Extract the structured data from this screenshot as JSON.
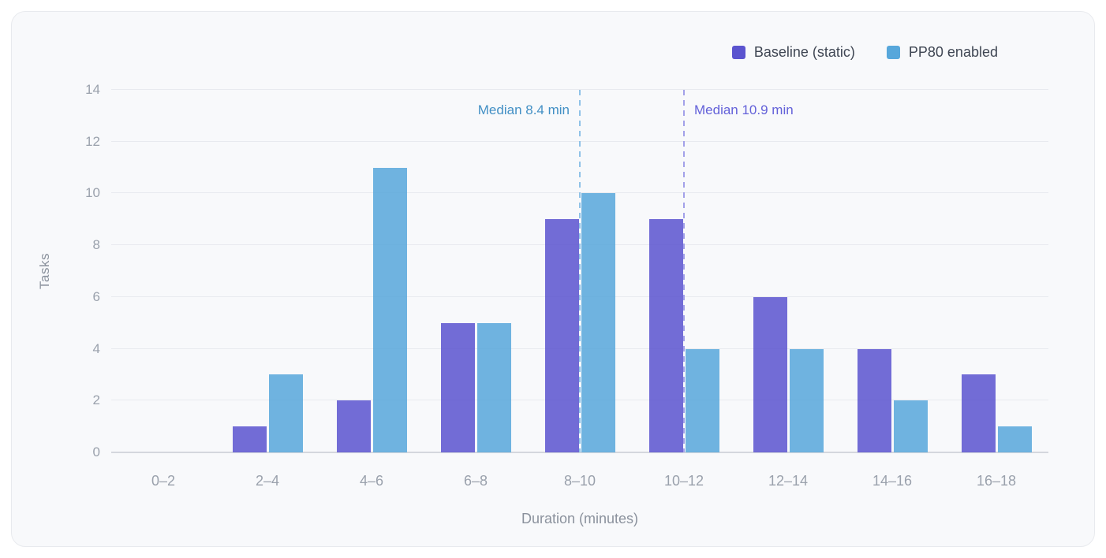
{
  "chart_data": {
    "type": "bar",
    "categories": [
      "0–2",
      "2–4",
      "4–6",
      "6–8",
      "8–10",
      "10–12",
      "12–14",
      "14–16",
      "16–18"
    ],
    "series": [
      {
        "name": "Baseline (static)",
        "color": "#5b54cf",
        "values": [
          0,
          1,
          2,
          5,
          9,
          9,
          6,
          4,
          3
        ]
      },
      {
        "name": "PP80 enabled",
        "color": "#57a7db",
        "values": [
          0,
          3,
          11,
          5,
          10,
          4,
          4,
          2,
          1
        ]
      }
    ],
    "xlabel": "Duration (minutes)",
    "ylabel": "Tasks",
    "ylim": [
      0,
      14
    ],
    "yticks": [
      0,
      2,
      4,
      6,
      8,
      10,
      12,
      14
    ],
    "x_range_minutes": [
      0,
      18
    ],
    "bin_width_minutes": 2,
    "grid": "horizontal",
    "legend_position": "top-right",
    "annotations": [
      {
        "type": "vline",
        "value": 8.4,
        "label": "Median 8.4 min",
        "line_color": "#8fc2e8",
        "text_color": "#4390c5",
        "label_side": "left"
      },
      {
        "type": "vline",
        "value": 10.9,
        "label": "Median 10.9 min",
        "line_color": "#a3a1e9",
        "text_color": "#6361d9",
        "label_side": "right"
      }
    ]
  }
}
